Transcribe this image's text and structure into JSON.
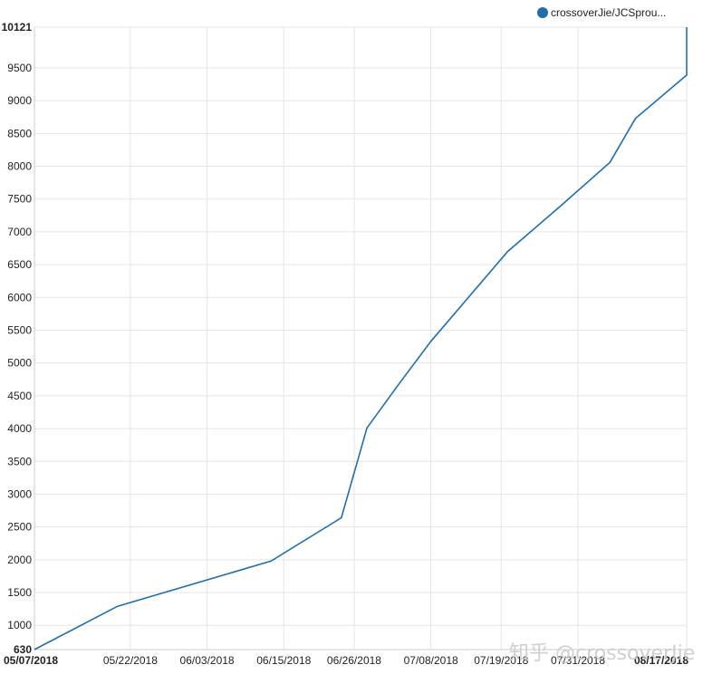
{
  "watermark": "知乎 @crossoverJie",
  "legend": {
    "label": "crossoverJie/JCSprou...",
    "color": "#1f6fad"
  },
  "colors": {
    "series": "#1f6fad",
    "grid": "#e5e5e5"
  },
  "chart_data": {
    "type": "line",
    "title": "",
    "xlabel": "",
    "ylabel": "",
    "grid": true,
    "legend_position": "top-right",
    "xlim": [
      "2018-05-07",
      "2018-08-17"
    ],
    "ylim": [
      630,
      10121
    ],
    "x_ticks": [
      "05/07/2018",
      "05/22/2018",
      "06/03/2018",
      "06/15/2018",
      "06/26/2018",
      "07/08/2018",
      "07/19/2018",
      "07/31/2018",
      "08/17/2018"
    ],
    "y_ticks": [
      630,
      1000,
      1500,
      2000,
      2500,
      3000,
      3500,
      4000,
      4500,
      5000,
      5500,
      6000,
      6500,
      7000,
      7500,
      8000,
      8500,
      9000,
      9500,
      10121
    ],
    "series": [
      {
        "name": "crossoverJie/JCSprou...",
        "points": [
          [
            "2018-05-07",
            630
          ],
          [
            "2018-05-20",
            1290
          ],
          [
            "2018-06-13",
            1980
          ],
          [
            "2018-06-24",
            2640
          ],
          [
            "2018-06-28",
            4010
          ],
          [
            "2018-07-03",
            4680
          ],
          [
            "2018-07-08",
            5330
          ],
          [
            "2018-07-20",
            6700
          ],
          [
            "2018-07-28",
            7370
          ],
          [
            "2018-08-05",
            8060
          ],
          [
            "2018-08-09",
            8730
          ],
          [
            "2018-08-17",
            9390
          ],
          [
            "2018-08-21",
            10090
          ],
          [
            "2018-08-22",
            10121
          ]
        ]
      }
    ]
  }
}
